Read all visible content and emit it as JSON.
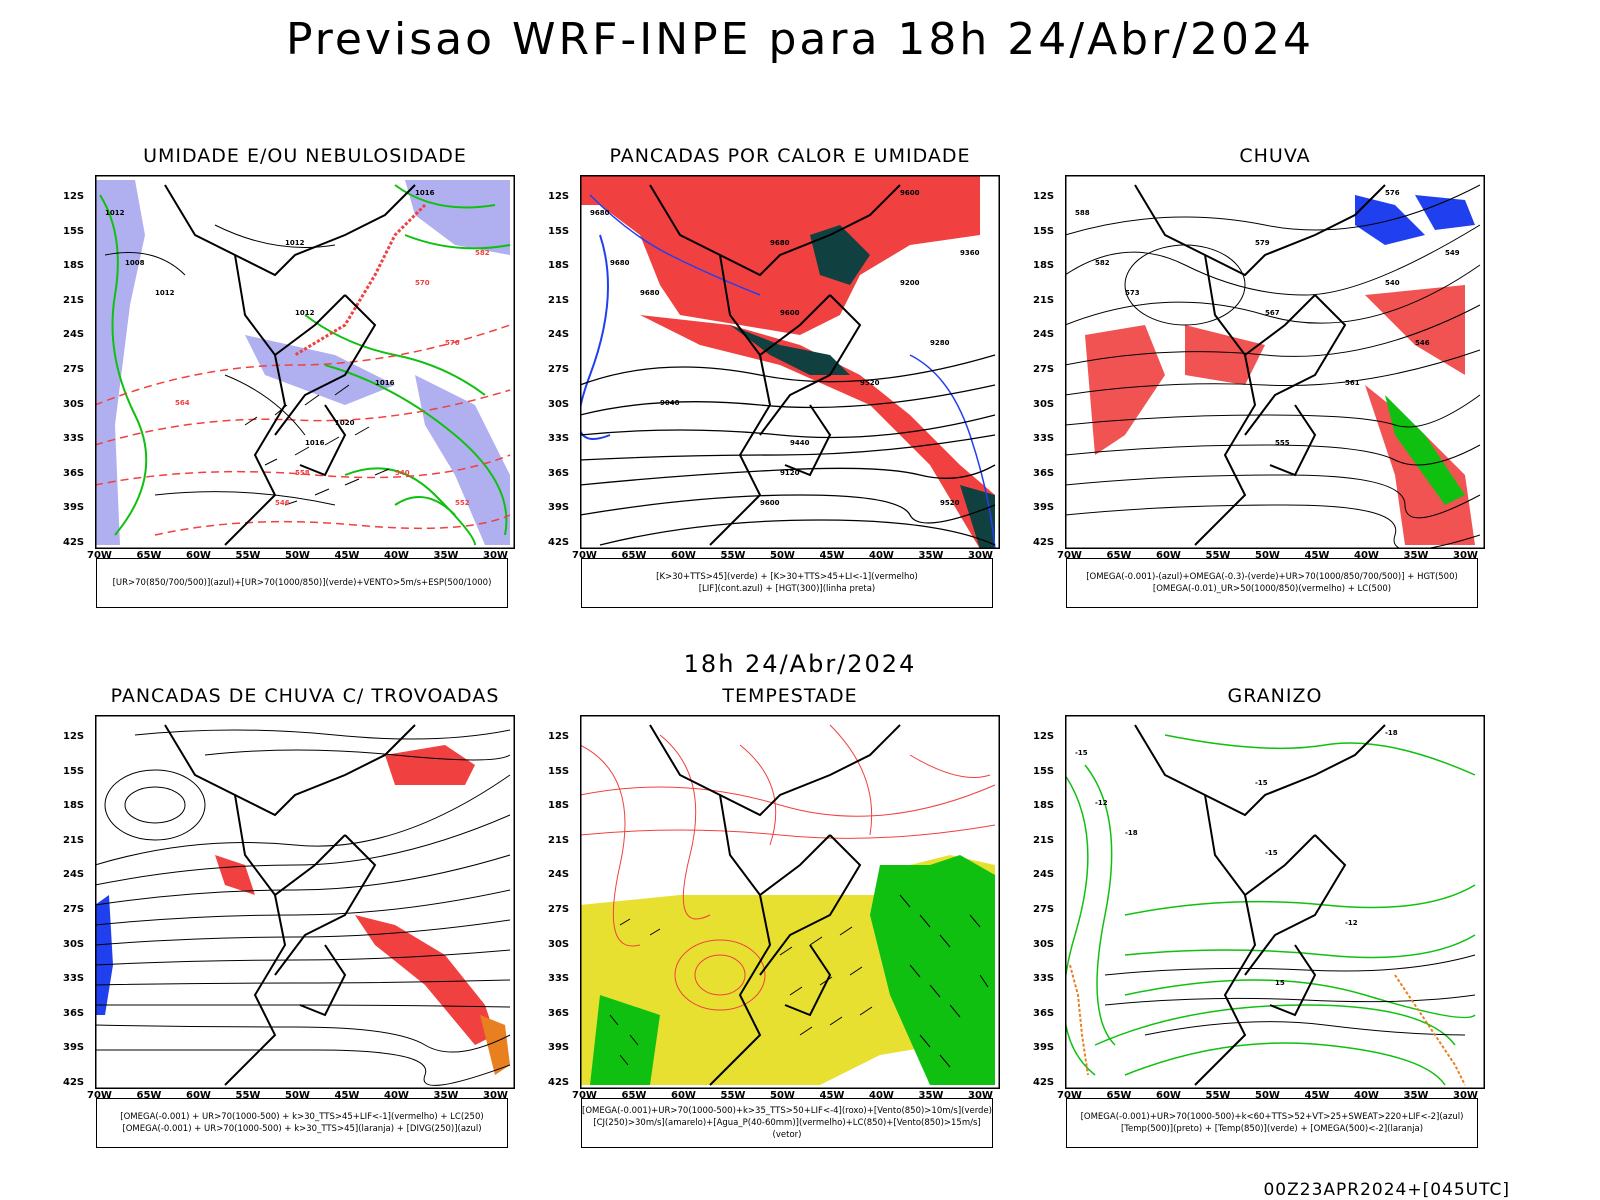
{
  "header": {
    "title": "Previsao WRF-INPE  para 18h 24/Abr/2024"
  },
  "middle_label": "18h 24/Abr/2024",
  "footer_code": "00Z23APR2024+[045UTC]",
  "axes": {
    "lat_labels": [
      "12S",
      "15S",
      "18S",
      "21S",
      "24S",
      "27S",
      "30S",
      "33S",
      "36S",
      "39S",
      "42S"
    ],
    "lon_labels": [
      "70W",
      "65W",
      "60W",
      "55W",
      "50W",
      "45W",
      "40W",
      "35W",
      "30W"
    ]
  },
  "colors": {
    "red": "#f04040",
    "green": "#10c010",
    "blue": "#2040f0",
    "lavender": "#b0b0f0",
    "darkteal": "#104040",
    "yellow": "#e8e030",
    "orange": "#e88020"
  },
  "panels": [
    {
      "id": "umidade",
      "title": "UMIDADE E/OU NEBULOSIDADE",
      "legend": [
        "[UR>70(850/700/500)](azul)+[UR>70(1000/850)](verde)+VENTO>5m/s+ESP(500/1000)"
      ],
      "contour_labels": [
        "1012",
        "1008",
        "1012",
        "1016",
        "1012",
        "1012",
        "1016",
        "1016",
        "582",
        "576",
        "570",
        "564",
        "558",
        "552",
        "546",
        "540",
        "1020"
      ]
    },
    {
      "id": "pancadas-calor",
      "title": "PANCADAS POR CALOR E UMIDADE",
      "legend": [
        "[K>30+TTS>45](verde)  +  [K>30+TTS>45+LI<-1](vermelho)",
        "[LIF](cont.azul)  +  [HGT(300)](linha preta)"
      ],
      "contour_labels": [
        "9680",
        "9680",
        "9680",
        "9600",
        "9680",
        "9600",
        "9520",
        "9440",
        "9360",
        "9280",
        "9200",
        "9040",
        "9120",
        "9520",
        "9600"
      ]
    },
    {
      "id": "chuva",
      "title": "CHUVA",
      "legend": [
        "[OMEGA(-0.001)-(azul)+OMEGA(-0.3)-(verde)+UR>70(1000/850/700/500)]  +  HGT(500)",
        "[OMEGA(-0.01)_UR>50(1000/850)(vermelho)  +  LC(500)"
      ],
      "contour_labels": [
        "588",
        "582",
        "579",
        "576",
        "573",
        "567",
        "561",
        "555",
        "549",
        "546",
        "540"
      ]
    },
    {
      "id": "pancadas-trovoadas",
      "title": "PANCADAS DE CHUVA C/ TROVOADAS",
      "legend": [
        "[OMEGA(-0.001)  +  UR>70(1000-500)  +  k>30_TTS>45+LIF<-1](vermelho)  +  LC(250)",
        "[OMEGA(-0.001)  +  UR>70(1000-500)  +  k>30_TTS>45](laranja)  +  [DIVG(250)](azul)"
      ],
      "contour_labels": []
    },
    {
      "id": "tempestade",
      "title": "TEMPESTADE",
      "legend": [
        "[OMEGA(-0.001)+UR>70(1000-500)+k>35_TTS>50+LIF<-4](roxo)+[Vento(850)>10m/s](verde)",
        "[CJ(250)>30m/s](amarelo)+[Agua_P(40-60mm)](vermelho)+LC(850)+[Vento(850)>15m/s](vetor)"
      ],
      "contour_labels": []
    },
    {
      "id": "granizo",
      "title": "GRANIZO",
      "legend": [
        "[OMEGA(-0.001)+UR>70(1000-500)+k<60+TTS>52+VT>25+SWEAT>220+LIF<-2](azul)",
        "[Temp(500)](preto)  +  [Temp(850)](verde)  +  [OMEGA(500)<-2](laranja)"
      ],
      "contour_labels": [
        "-15",
        "-12",
        "-15",
        "-18",
        "-18",
        "-15",
        "-12",
        "15"
      ]
    }
  ]
}
